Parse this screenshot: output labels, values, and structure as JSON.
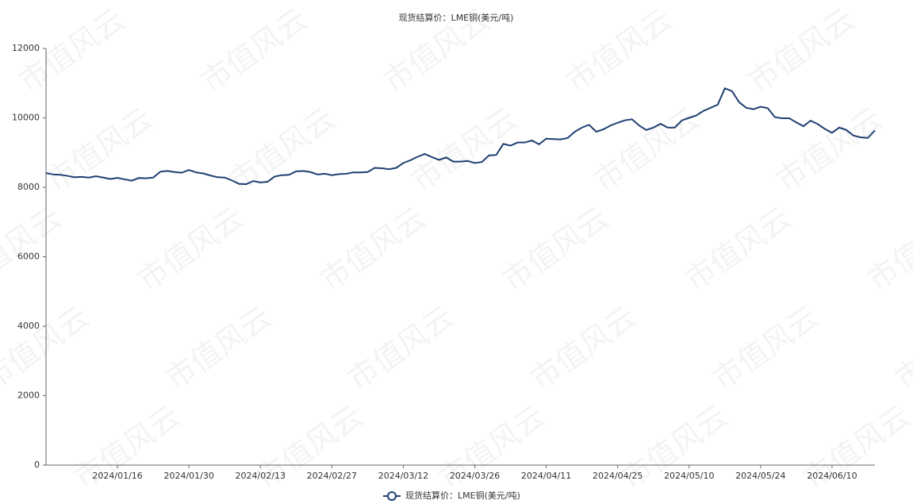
{
  "chart_data": {
    "type": "line",
    "title": "现货结算价：LME铜(美元/吨)",
    "watermark": "市值风云",
    "categories": [
      null,
      null,
      null,
      null,
      null,
      null,
      null,
      null,
      null,
      null,
      "2024/01/16",
      null,
      null,
      null,
      null,
      null,
      null,
      null,
      null,
      null,
      "2024/01/30",
      null,
      null,
      null,
      null,
      null,
      null,
      null,
      null,
      null,
      "2024/02/13",
      null,
      null,
      null,
      null,
      null,
      null,
      null,
      null,
      null,
      "2024/02/27",
      null,
      null,
      null,
      null,
      null,
      null,
      null,
      null,
      null,
      "2024/03/12",
      null,
      null,
      null,
      null,
      null,
      null,
      null,
      null,
      null,
      "2024/03/26",
      null,
      null,
      null,
      null,
      null,
      null,
      null,
      null,
      null,
      "2024/04/11",
      null,
      null,
      null,
      null,
      null,
      null,
      null,
      null,
      null,
      "2024/04/25",
      null,
      null,
      null,
      null,
      null,
      null,
      null,
      null,
      null,
      "2024/05/10",
      null,
      null,
      null,
      null,
      null,
      null,
      null,
      null,
      null,
      "2024/05/24",
      null,
      null,
      null,
      null,
      null,
      null,
      null,
      null,
      null,
      "2024/06/10",
      null,
      null,
      null,
      null,
      null,
      null
    ],
    "series": [
      {
        "name": "现货结算价：LME铜(美元/吨)",
        "color": "#1f3f73",
        "values": [
          8410,
          8370,
          8360,
          8330,
          8290,
          8300,
          8280,
          8320,
          8280,
          8240,
          8270,
          8230,
          8190,
          8270,
          8260,
          8280,
          8450,
          8470,
          8440,
          8420,
          8500,
          8430,
          8400,
          8340,
          8290,
          8280,
          8200,
          8100,
          8090,
          8180,
          8140,
          8160,
          8310,
          8350,
          8360,
          8460,
          8470,
          8440,
          8370,
          8390,
          8350,
          8380,
          8390,
          8430,
          8430,
          8440,
          8560,
          8550,
          8520,
          8560,
          8700,
          8780,
          8880,
          8960,
          8870,
          8790,
          8860,
          8740,
          8740,
          8760,
          8700,
          8730,
          8920,
          8930,
          9250,
          9200,
          9290,
          9290,
          9350,
          9240,
          9400,
          9390,
          9380,
          9420,
          9600,
          9720,
          9800,
          9600,
          9670,
          9780,
          9860,
          9930,
          9960,
          9780,
          9650,
          9720,
          9830,
          9720,
          9720,
          9930,
          10000,
          10070,
          10200,
          10290,
          10380,
          10850,
          10770,
          10450,
          10290,
          10250,
          10320,
          10280,
          10020,
          9990,
          9990,
          9870,
          9760,
          9920,
          9820,
          9680,
          9570,
          9720,
          9650,
          9490,
          9440,
          9420,
          9640
        ]
      }
    ],
    "ylim": [
      0,
      12000
    ],
    "yticks": [
      0,
      2000,
      4000,
      6000,
      8000,
      10000,
      12000
    ],
    "grid": false,
    "legend": "bottom"
  }
}
